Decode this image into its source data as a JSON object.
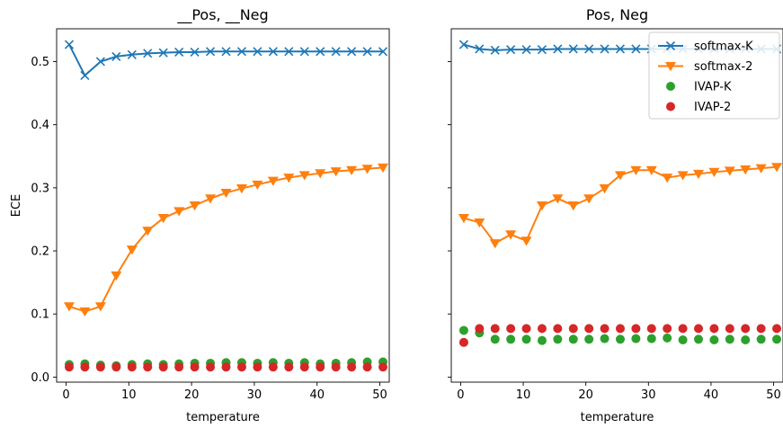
{
  "chart_data": [
    {
      "type": "line",
      "title": "__Pos, __Neg",
      "xlabel": "temperature",
      "ylabel": "ECE",
      "xlim": [
        -1.5,
        51.5
      ],
      "ylim": [
        -0.008,
        0.552
      ],
      "xticks": [
        0,
        10,
        20,
        30,
        40,
        50
      ],
      "yticks": [
        0.0,
        0.1,
        0.2,
        0.3,
        0.4,
        0.5
      ],
      "ytick_labels": [
        "0.0",
        "0.1",
        "0.2",
        "0.3",
        "0.4",
        "0.5"
      ],
      "x": [
        0.5,
        3.0,
        5.5,
        8.0,
        10.5,
        13.0,
        15.5,
        18.0,
        20.5,
        23.0,
        25.5,
        28.0,
        30.5,
        33.0,
        35.5,
        38.0,
        40.5,
        43.0,
        45.5,
        48.0,
        50.5
      ],
      "series": [
        {
          "name": "softmax-K",
          "color": "#1f77b4",
          "marker": "x",
          "line": true,
          "values": [
            0.527,
            0.478,
            0.5,
            0.508,
            0.511,
            0.513,
            0.514,
            0.515,
            0.515,
            0.516,
            0.516,
            0.516,
            0.516,
            0.516,
            0.516,
            0.516,
            0.516,
            0.516,
            0.516,
            0.516,
            0.516
          ]
        },
        {
          "name": "softmax-2",
          "color": "#ff7f0e",
          "marker": "triangle-down",
          "line": true,
          "values": [
            0.112,
            0.104,
            0.112,
            0.161,
            0.202,
            0.232,
            0.252,
            0.263,
            0.272,
            0.283,
            0.292,
            0.299,
            0.305,
            0.311,
            0.316,
            0.32,
            0.323,
            0.326,
            0.328,
            0.33,
            0.332
          ]
        },
        {
          "name": "IVAP-K",
          "color": "#2ca02c",
          "marker": "circle",
          "line": false,
          "values": [
            0.02,
            0.021,
            0.019,
            0.018,
            0.02,
            0.021,
            0.02,
            0.021,
            0.022,
            0.022,
            0.023,
            0.023,
            0.022,
            0.023,
            0.022,
            0.023,
            0.021,
            0.022,
            0.023,
            0.024,
            0.024
          ]
        },
        {
          "name": "IVAP-2",
          "color": "#d62728",
          "marker": "circle",
          "line": false,
          "values": [
            0.016,
            0.016,
            0.016,
            0.016,
            0.016,
            0.016,
            0.016,
            0.016,
            0.016,
            0.016,
            0.016,
            0.016,
            0.016,
            0.016,
            0.016,
            0.016,
            0.016,
            0.016,
            0.016,
            0.016,
            0.016
          ]
        }
      ]
    },
    {
      "type": "line",
      "title": "Pos, Neg",
      "xlabel": "temperature",
      "ylabel": "",
      "xlim": [
        -1.5,
        51.5
      ],
      "ylim": [
        -0.008,
        0.552
      ],
      "xticks": [
        0,
        10,
        20,
        30,
        40,
        50
      ],
      "yticks": [
        0.0,
        0.1,
        0.2,
        0.3,
        0.4,
        0.5
      ],
      "legend": {
        "placement": "upper right",
        "entries": [
          "softmax-K",
          "softmax-2",
          "IVAP-K",
          "IVAP-2"
        ]
      },
      "x": [
        0.5,
        3.0,
        5.5,
        8.0,
        10.5,
        13.0,
        15.5,
        18.0,
        20.5,
        23.0,
        25.5,
        28.0,
        30.5,
        33.0,
        35.5,
        38.0,
        40.5,
        43.0,
        45.5,
        48.0,
        50.5
      ],
      "series": [
        {
          "name": "softmax-K",
          "color": "#1f77b4",
          "marker": "x",
          "line": true,
          "values": [
            0.527,
            0.52,
            0.518,
            0.519,
            0.519,
            0.519,
            0.52,
            0.52,
            0.52,
            0.52,
            0.52,
            0.52,
            0.52,
            0.52,
            0.52,
            0.52,
            0.52,
            0.52,
            0.52,
            0.52,
            0.52
          ]
        },
        {
          "name": "softmax-2",
          "color": "#ff7f0e",
          "marker": "triangle-down",
          "line": true,
          "values": [
            0.252,
            0.245,
            0.212,
            0.226,
            0.216,
            0.272,
            0.283,
            0.272,
            0.283,
            0.299,
            0.32,
            0.328,
            0.328,
            0.316,
            0.32,
            0.322,
            0.325,
            0.327,
            0.329,
            0.331,
            0.333
          ]
        },
        {
          "name": "IVAP-K",
          "color": "#2ca02c",
          "marker": "circle",
          "line": false,
          "values": [
            0.074,
            0.07,
            0.06,
            0.06,
            0.06,
            0.058,
            0.06,
            0.06,
            0.06,
            0.061,
            0.06,
            0.061,
            0.061,
            0.062,
            0.059,
            0.06,
            0.059,
            0.06,
            0.059,
            0.06,
            0.06
          ]
        },
        {
          "name": "IVAP-2",
          "color": "#d62728",
          "marker": "circle",
          "line": false,
          "values": [
            0.055,
            0.077,
            0.077,
            0.077,
            0.077,
            0.077,
            0.077,
            0.077,
            0.077,
            0.077,
            0.077,
            0.077,
            0.077,
            0.077,
            0.077,
            0.077,
            0.077,
            0.077,
            0.077,
            0.077,
            0.077
          ]
        }
      ]
    }
  ]
}
